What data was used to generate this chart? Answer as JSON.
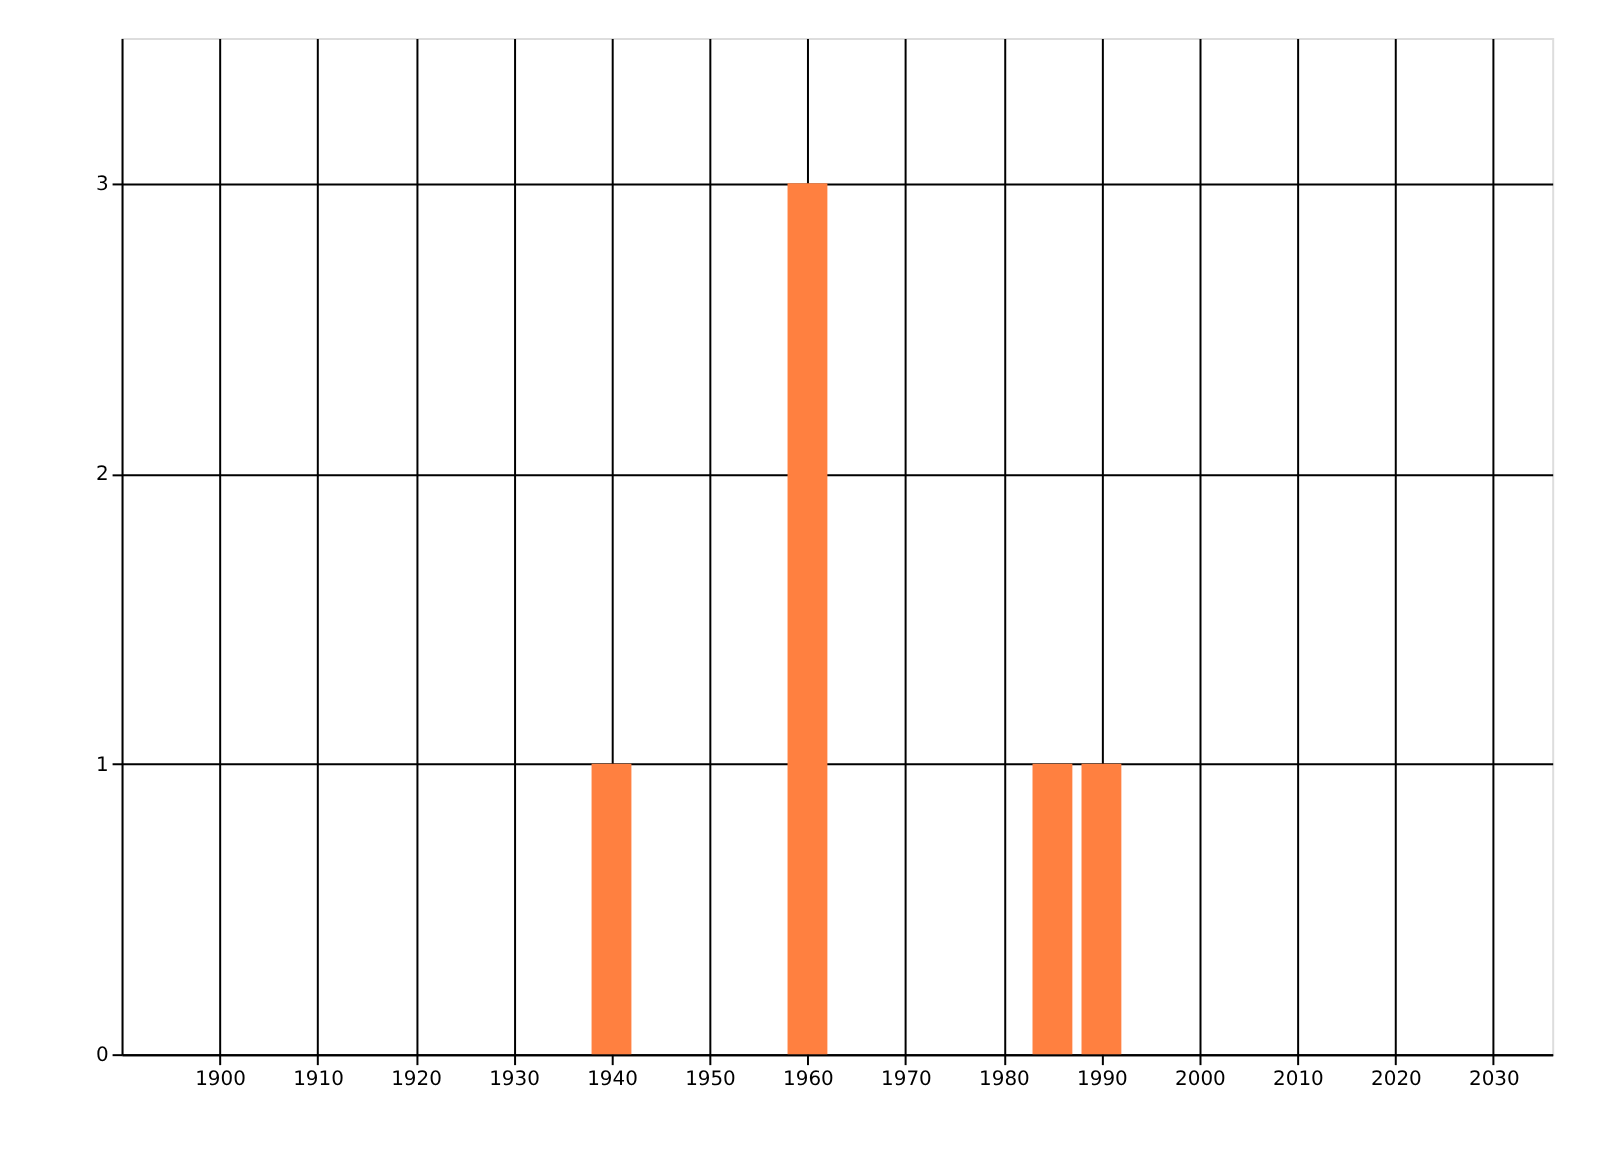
{
  "chart_data": {
    "type": "bar",
    "x": [
      1940,
      1960,
      1985,
      1990
    ],
    "values": [
      1,
      3,
      1,
      1
    ],
    "color": "#ff8040",
    "xlim": [
      1890,
      2036
    ],
    "xticks": [
      1900,
      1910,
      1920,
      1930,
      1940,
      1950,
      1960,
      1970,
      1980,
      1990,
      2000,
      2010,
      2020,
      2030
    ],
    "ylim": [
      0,
      3.5
    ],
    "yticks": [
      0,
      1,
      2,
      3
    ],
    "grid": true
  }
}
